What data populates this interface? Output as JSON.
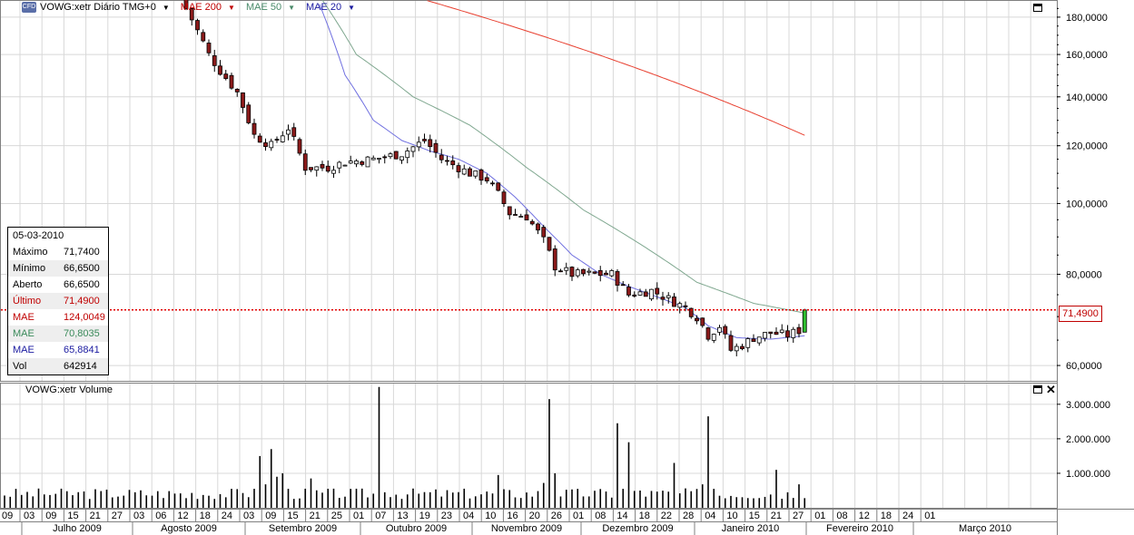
{
  "header": {
    "symbol_label": "VOWG:xetr Diário TMG+0",
    "studies": [
      {
        "label": "MAE 200",
        "color": "#e03020"
      },
      {
        "label": "MAE 50",
        "color": "#5a9a7a"
      },
      {
        "label": "MAE 20",
        "color": "#3030c0"
      }
    ]
  },
  "volume_panel": {
    "title": "VOWG:xetr Volume"
  },
  "info_box": {
    "date": "05-03-2010",
    "rows": [
      {
        "label": "Máximo",
        "value": "71,7400",
        "color": "#000000"
      },
      {
        "label": "Mínimo",
        "value": "66,6500",
        "color": "#000000"
      },
      {
        "label": "Aberto",
        "value": "66,6500",
        "color": "#000000"
      },
      {
        "label": "Último",
        "value": "71,4900",
        "color": "#c00000"
      },
      {
        "label": "MAE",
        "value": "124,0049",
        "color": "#c00000"
      },
      {
        "label": "MAE",
        "value": "70,8035",
        "color": "#3a8a5a"
      },
      {
        "label": "MAE",
        "value": "65,8841",
        "color": "#1a1aa0"
      },
      {
        "label": "Vol",
        "value": "642914",
        "color": "#000000"
      }
    ]
  },
  "last_price_tag": "71,4900",
  "chart_data": {
    "type": "candlestick",
    "price_axis": {
      "scale": "log",
      "range": [
        57,
        190
      ],
      "ticks": [
        "180,0000",
        "160,0000",
        "140,0000",
        "120,0000",
        "100,0000",
        "80,0000",
        "60,0000"
      ],
      "tick_values": [
        180,
        160,
        140,
        120,
        100,
        80,
        60
      ]
    },
    "volume_axis": {
      "range": [
        0,
        3600000
      ],
      "ticks": [
        "3.000.000",
        "2.000.000",
        "1.000.000"
      ],
      "tick_values": [
        3000000,
        2000000,
        1000000
      ]
    },
    "date_axis": {
      "day_labels": [
        "09",
        "03",
        "09",
        "15",
        "21",
        "27",
        "03",
        "06",
        "12",
        "18",
        "24",
        "03",
        "09",
        "15",
        "21",
        "25",
        "01",
        "07",
        "13",
        "19",
        "23",
        "04",
        "10",
        "16",
        "20",
        "26",
        "01",
        "08",
        "14",
        "18",
        "22",
        "28",
        "04",
        "10",
        "15",
        "21",
        "27",
        "01",
        "08",
        "12",
        "18",
        "24",
        "01"
      ],
      "month_labels": [
        "Julho 2009",
        "Agosto 2009",
        "Setembro 2009",
        "Outubro 2009",
        "Novembro 2009",
        "Dezembro 2009",
        "Janeiro 2010",
        "Fevereiro 2010",
        "Março 2010"
      ]
    },
    "last_price": 71.49,
    "close_keypoints": [
      [
        0,
        185
      ],
      [
        4,
        160
      ],
      [
        6,
        152
      ],
      [
        9,
        142
      ],
      [
        12,
        124
      ],
      [
        15,
        120
      ],
      [
        18,
        127
      ],
      [
        21,
        112
      ],
      [
        25,
        112
      ],
      [
        28,
        114
      ],
      [
        33,
        115
      ],
      [
        38,
        117
      ],
      [
        42,
        122
      ],
      [
        45,
        115
      ],
      [
        50,
        110
      ],
      [
        53,
        108
      ],
      [
        55,
        103
      ],
      [
        57,
        97
      ],
      [
        60,
        96
      ],
      [
        63,
        89
      ],
      [
        65,
        82
      ],
      [
        68,
        80
      ],
      [
        72,
        80
      ],
      [
        75,
        80
      ],
      [
        78,
        75
      ],
      [
        82,
        76
      ],
      [
        85,
        74
      ],
      [
        88,
        72
      ],
      [
        90,
        70
      ],
      [
        92,
        66
      ],
      [
        94,
        68
      ],
      [
        96,
        63
      ],
      [
        98,
        64
      ],
      [
        100,
        65.5
      ],
      [
        103,
        66.5
      ],
      [
        106,
        66
      ],
      [
        108,
        67
      ],
      [
        109,
        71.49
      ]
    ],
    "volume_keypoints": [
      [
        0,
        280000
      ],
      [
        12,
        550000
      ],
      [
        13,
        1500000
      ],
      [
        14,
        680000
      ],
      [
        15,
        1700000
      ],
      [
        16,
        900000
      ],
      [
        17,
        1000000
      ],
      [
        18,
        550000
      ],
      [
        22,
        850000
      ],
      [
        34,
        3500000
      ],
      [
        35,
        450000
      ],
      [
        55,
        950000
      ],
      [
        63,
        720000
      ],
      [
        64,
        3150000
      ],
      [
        65,
        1000000
      ],
      [
        76,
        2450000
      ],
      [
        77,
        550000
      ],
      [
        78,
        1900000
      ],
      [
        80,
        500000
      ],
      [
        86,
        1300000
      ],
      [
        91,
        680000
      ],
      [
        92,
        2650000
      ],
      [
        93,
        550000
      ],
      [
        104,
        1100000
      ],
      [
        108,
        680000
      ]
    ],
    "ma200_keypoints": [
      [
        32,
        200
      ],
      [
        109,
        124
      ]
    ],
    "ma50_keypoints": [
      [
        22,
        200
      ],
      [
        30,
        160
      ],
      [
        40,
        140
      ],
      [
        50,
        128
      ],
      [
        60,
        112
      ],
      [
        70,
        98
      ],
      [
        80,
        88
      ],
      [
        90,
        78
      ],
      [
        100,
        73
      ],
      [
        109,
        70.8
      ]
    ],
    "ma20_keypoints": [
      [
        22,
        200
      ],
      [
        28,
        150
      ],
      [
        33,
        130
      ],
      [
        38,
        122
      ],
      [
        43,
        118
      ],
      [
        48,
        115
      ],
      [
        53,
        110
      ],
      [
        58,
        102
      ],
      [
        63,
        93
      ],
      [
        68,
        85
      ],
      [
        73,
        80
      ],
      [
        78,
        77
      ],
      [
        83,
        74.5
      ],
      [
        88,
        72
      ],
      [
        92,
        68
      ],
      [
        97,
        65.5
      ],
      [
        103,
        65.2
      ],
      [
        109,
        65.9
      ]
    ]
  }
}
